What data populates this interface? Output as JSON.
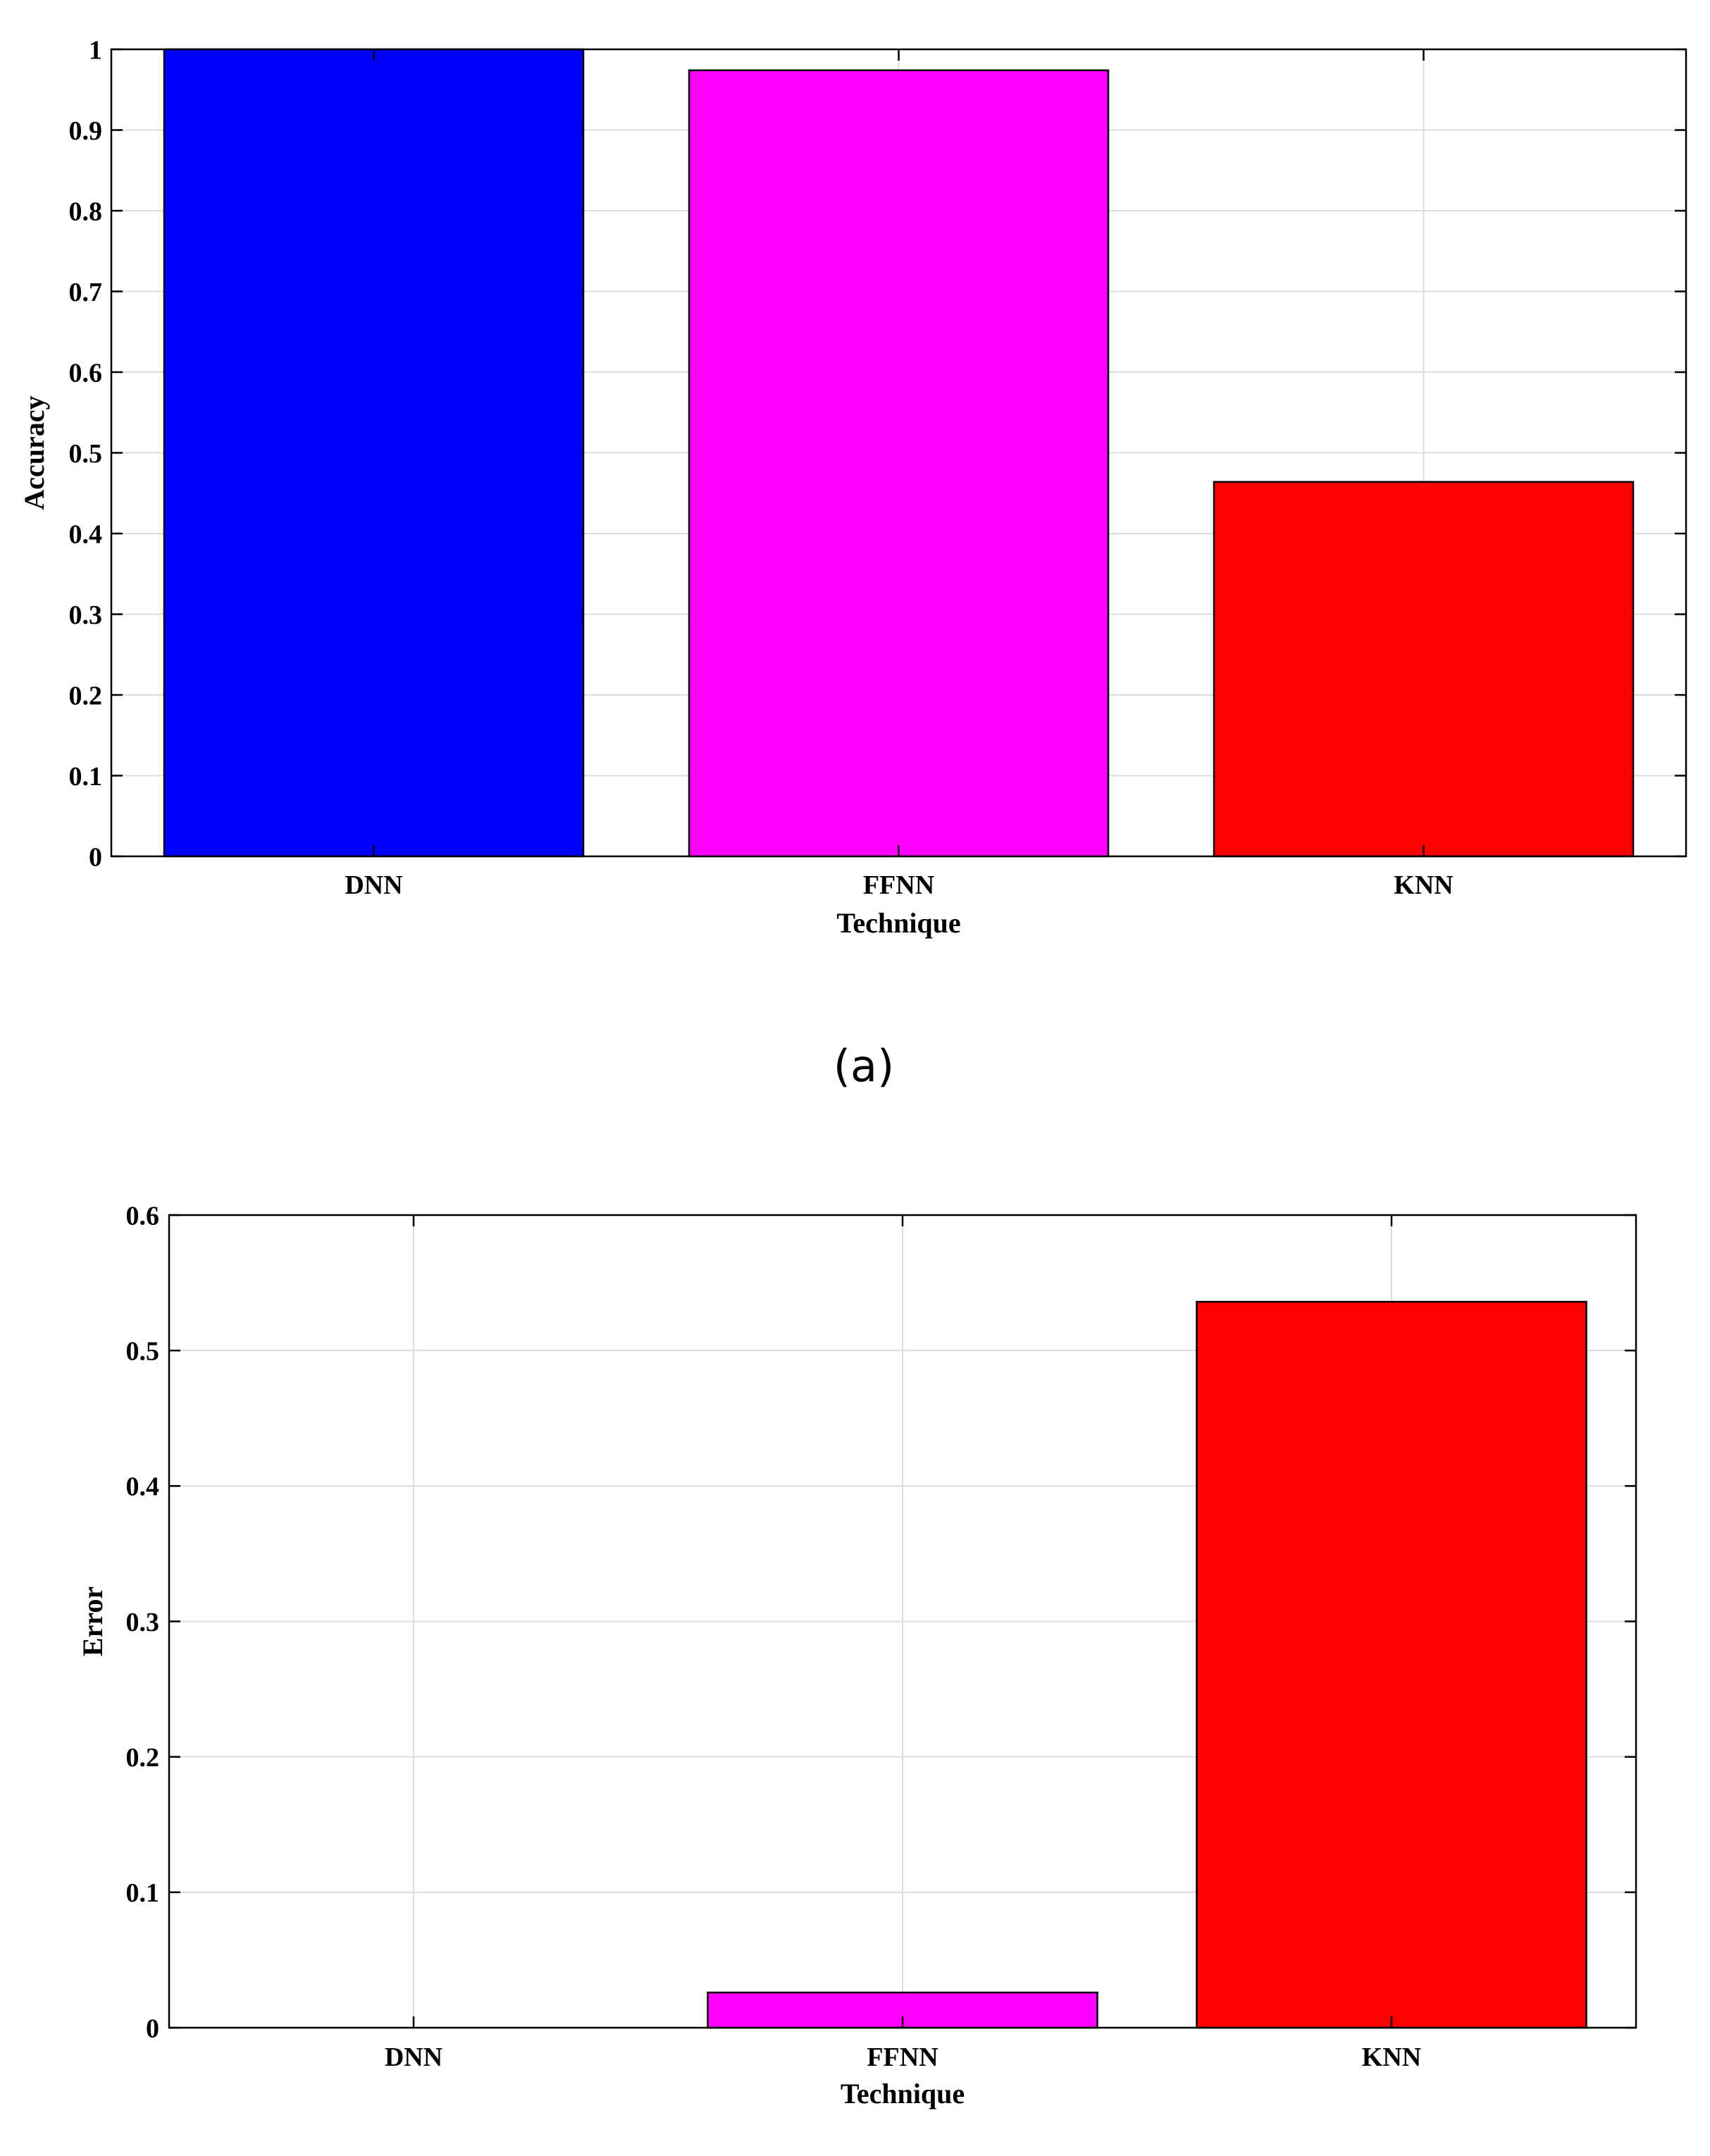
{
  "figure_a": {
    "caption": "(a)"
  },
  "chart_data": [
    {
      "type": "bar",
      "categories": [
        "DNN",
        "FFNN",
        "KNN"
      ],
      "values": [
        1.0,
        0.974,
        0.464
      ],
      "colors": [
        "#0000ff",
        "#ff00ff",
        "#ff0000"
      ],
      "xlabel": "Technique",
      "ylabel": "Accuracy",
      "ylim": [
        0,
        1
      ],
      "yticks": [
        0,
        0.1,
        0.2,
        0.3,
        0.4,
        0.5,
        0.6,
        0.7,
        0.8,
        0.9,
        1
      ],
      "ytick_labels": [
        "0",
        "0.1",
        "0.2",
        "0.3",
        "0.4",
        "0.5",
        "0.6",
        "0.7",
        "0.8",
        "0.9",
        "1"
      ],
      "grid": true
    },
    {
      "type": "bar",
      "categories": [
        "DNN",
        "FFNN",
        "KNN"
      ],
      "values": [
        0.0,
        0.026,
        0.536
      ],
      "colors": [
        "#0000ff",
        "#ff00ff",
        "#ff0000"
      ],
      "xlabel": "Technique",
      "ylabel": "Error",
      "ylim": [
        0,
        0.6
      ],
      "yticks": [
        0,
        0.1,
        0.2,
        0.3,
        0.4,
        0.5,
        0.6
      ],
      "ytick_labels": [
        "0",
        "0.1",
        "0.2",
        "0.3",
        "0.4",
        "0.5",
        "0.6"
      ],
      "grid": true
    }
  ]
}
